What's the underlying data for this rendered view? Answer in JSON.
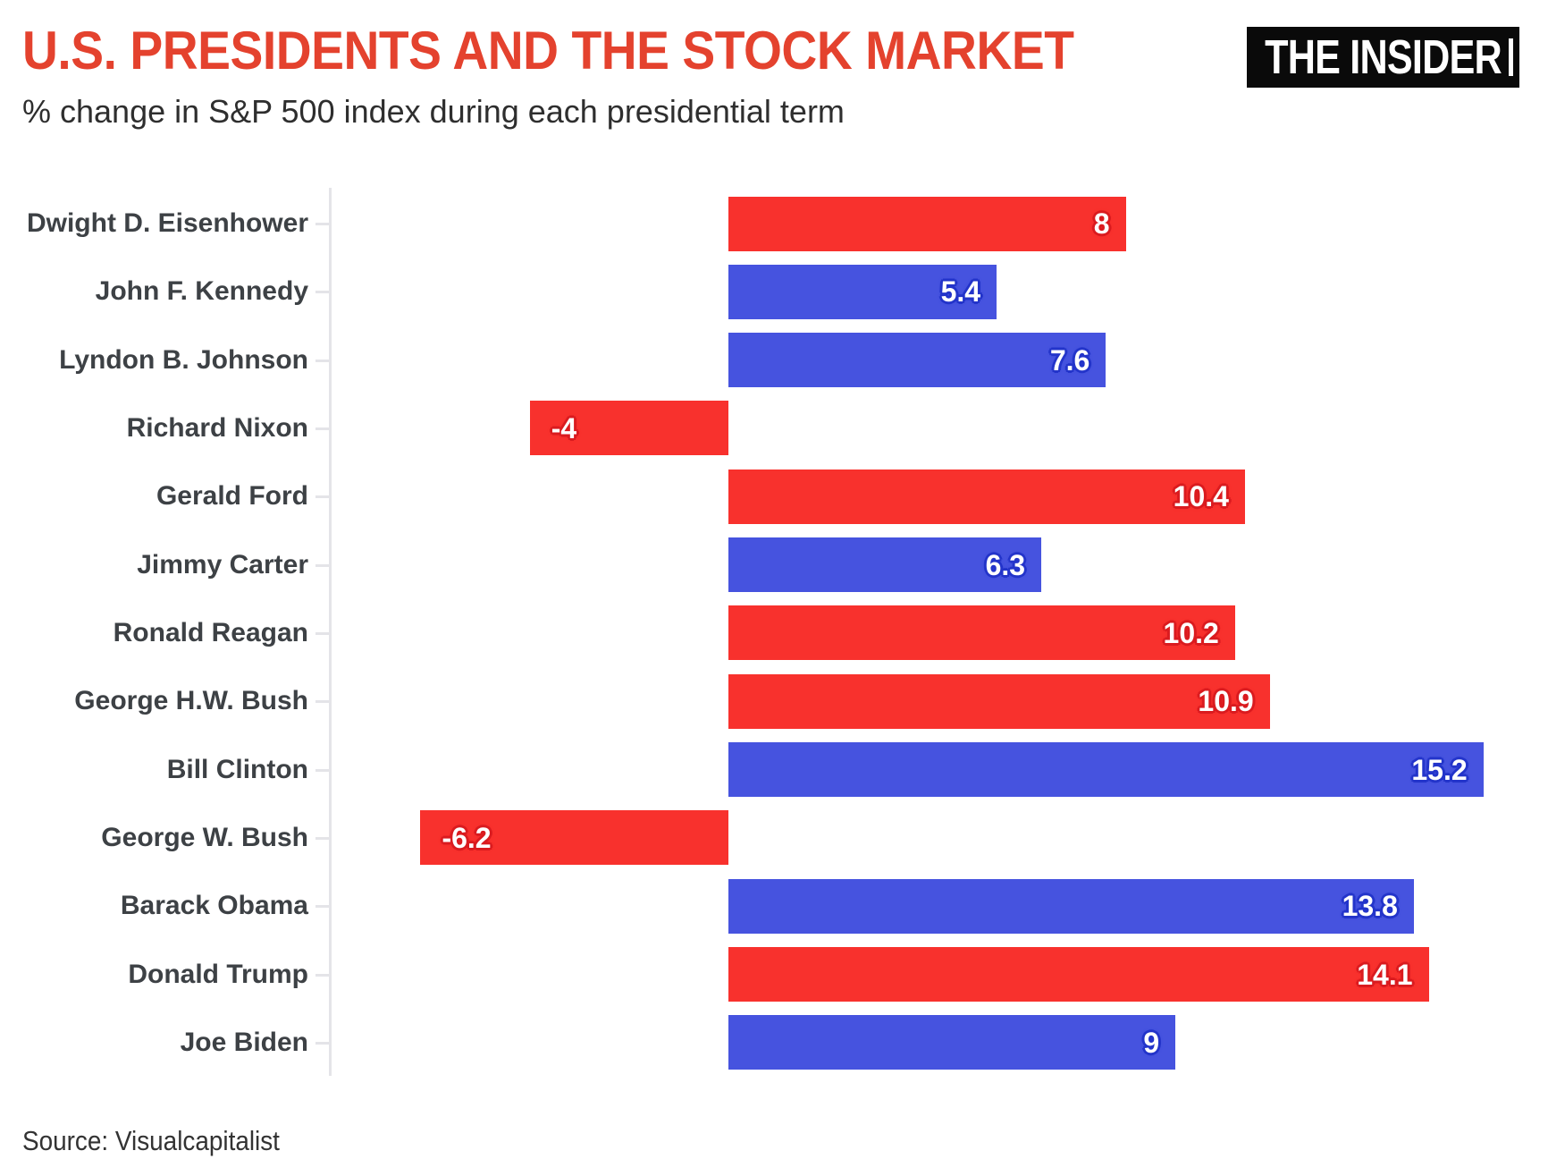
{
  "header": {
    "title": "U.S. PRESIDENTS AND THE STOCK MARKET",
    "subtitle": "% change in S&P 500 index during each presidential term",
    "logo_text": "THE INSIDER"
  },
  "footer": {
    "source": "Source: Visualcapitalist"
  },
  "colors": {
    "title_red": "#e4422e",
    "logo_bg": "#0a0a0a",
    "logo_text": "#ffffff",
    "axis_line": "#e4e4e8",
    "category_label_text": "#3d4145",
    "subtitle_text": "#2e2e2e",
    "source_text": "#333333",
    "bar_value_text": "#ffffff"
  },
  "chart_data": {
    "type": "bar",
    "orientation": "horizontal",
    "title": "U.S. PRESIDENTS AND THE STOCK MARKET",
    "subtitle": "% change in S&P 500 index during each presidential term",
    "xlabel": "",
    "ylabel": "",
    "value_unit": "% change in S&P 500 index during each presidential term",
    "xlim": [
      -8,
      16.5
    ],
    "zero_baseline": 0,
    "grid": false,
    "legend": "none",
    "party_colors": {
      "republican": "#f8312d",
      "democrat": "#4653df"
    },
    "party_halo_colors": {
      "republican": "#da1b1f",
      "democrat": "#2334ca"
    },
    "categories": [
      "Dwight D. Eisenhower",
      "John F. Kennedy",
      "Lyndon B. Johnson",
      "Richard Nixon",
      "Gerald Ford",
      "Jimmy Carter",
      "Ronald Reagan",
      "George H.W. Bush",
      "Bill Clinton",
      "George W. Bush",
      "Barack Obama",
      "Donald Trump",
      "Joe Biden"
    ],
    "values": [
      8,
      5.4,
      7.6,
      -4,
      10.4,
      6.3,
      10.2,
      10.9,
      15.2,
      -6.2,
      13.8,
      14.1,
      9
    ],
    "presidents": [
      {
        "name": "Dwight D. Eisenhower",
        "value": 8,
        "label": "8",
        "party": "republican"
      },
      {
        "name": "John F. Kennedy",
        "value": 5.4,
        "label": "5.4",
        "party": "democrat"
      },
      {
        "name": "Lyndon B. Johnson",
        "value": 7.6,
        "label": "7.6",
        "party": "democrat"
      },
      {
        "name": "Richard Nixon",
        "value": -4,
        "label": "-4",
        "party": "republican"
      },
      {
        "name": "Gerald Ford",
        "value": 10.4,
        "label": "10.4",
        "party": "republican"
      },
      {
        "name": "Jimmy Carter",
        "value": 6.3,
        "label": "6.3",
        "party": "democrat"
      },
      {
        "name": "Ronald Reagan",
        "value": 10.2,
        "label": "10.2",
        "party": "republican"
      },
      {
        "name": "George H.W. Bush",
        "value": 10.9,
        "label": "10.9",
        "party": "republican"
      },
      {
        "name": "Bill Clinton",
        "value": 15.2,
        "label": "15.2",
        "party": "democrat"
      },
      {
        "name": "George W. Bush",
        "value": -6.2,
        "label": "-6.2",
        "party": "republican"
      },
      {
        "name": "Barack Obama",
        "value": 13.8,
        "label": "13.8",
        "party": "democrat"
      },
      {
        "name": "Donald Trump",
        "value": 14.1,
        "label": "14.1",
        "party": "republican"
      },
      {
        "name": "Joe Biden",
        "value": 9,
        "label": "9",
        "party": "democrat"
      }
    ]
  }
}
